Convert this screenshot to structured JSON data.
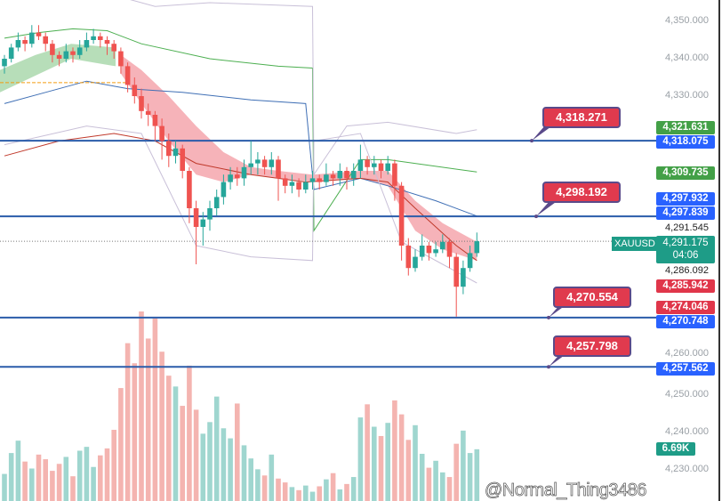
{
  "chart_data": {
    "type": "candlestick",
    "symbol": "XAUUSD",
    "countdown": "04:06",
    "ylim": [
      4225,
      4356
    ],
    "y_ticks": [
      "4,350.000",
      "4,340.000",
      "4,330.000",
      "4,260.000",
      "4,250.000",
      "4,240.000",
      "4,230.000"
    ],
    "y_tick_values": [
      4350,
      4340,
      4330,
      4260,
      4250,
      4240,
      4230
    ],
    "candles": [
      [
        4338,
        4341,
        4336,
        4340
      ],
      [
        4340,
        4344,
        4339,
        4343
      ],
      [
        4343,
        4347,
        4342,
        4345
      ],
      [
        4345,
        4346,
        4342,
        4344
      ],
      [
        4344,
        4349,
        4343,
        4347
      ],
      [
        4347,
        4349,
        4345,
        4346
      ],
      [
        4346,
        4347,
        4342,
        4344
      ],
      [
        4344,
        4345,
        4339,
        4341
      ],
      [
        4341,
        4342,
        4338,
        4340
      ],
      [
        4340,
        4344,
        4339,
        4342
      ],
      [
        4342,
        4343,
        4339,
        4341
      ],
      [
        4341,
        4345,
        4340,
        4343
      ],
      [
        4343,
        4347,
        4342,
        4345
      ],
      [
        4345,
        4348,
        4344,
        4346
      ],
      [
        4346,
        4347,
        4343,
        4345
      ],
      [
        4345,
        4346,
        4341,
        4344
      ],
      [
        4344,
        4345,
        4340,
        4342
      ],
      [
        4342,
        4343,
        4336,
        4338
      ],
      [
        4338,
        4339,
        4331,
        4333
      ],
      [
        4333,
        4335,
        4328,
        4330
      ],
      [
        4330,
        4332,
        4324,
        4326
      ],
      [
        4326,
        4328,
        4322,
        4325
      ],
      [
        4325,
        4326,
        4318,
        4322
      ],
      [
        4322,
        4324,
        4313,
        4318
      ],
      [
        4318,
        4320,
        4311,
        4314
      ],
      [
        4314,
        4318,
        4312,
        4316
      ],
      [
        4316,
        4317,
        4308,
        4310
      ],
      [
        4310,
        4311,
        4296,
        4300
      ],
      [
        4300,
        4302,
        4285,
        4295
      ],
      [
        4295,
        4299,
        4290,
        4297
      ],
      [
        4297,
        4302,
        4294,
        4300
      ],
      [
        4300,
        4305,
        4298,
        4303
      ],
      [
        4303,
        4309,
        4301,
        4307
      ],
      [
        4307,
        4311,
        4305,
        4309
      ],
      [
        4309,
        4311,
        4306,
        4308
      ],
      [
        4308,
        4313,
        4306,
        4311
      ],
      [
        4311,
        4318,
        4309,
        4312
      ],
      [
        4312,
        4315,
        4309,
        4313
      ],
      [
        4313,
        4314,
        4309,
        4311
      ],
      [
        4311,
        4315,
        4309,
        4313
      ],
      [
        4313,
        4314,
        4302,
        4308
      ],
      [
        4308,
        4309,
        4304,
        4306
      ],
      [
        4306,
        4309,
        4304,
        4307
      ],
      [
        4307,
        4308,
        4303,
        4305
      ],
      [
        4305,
        4309,
        4304,
        4307
      ],
      [
        4307,
        4310,
        4305,
        4308
      ],
      [
        4308,
        4309,
        4305,
        4307
      ],
      [
        4307,
        4312,
        4306,
        4309
      ],
      [
        4309,
        4310,
        4306,
        4308
      ],
      [
        4308,
        4312,
        4306,
        4310
      ],
      [
        4310,
        4311,
        4305,
        4308
      ],
      [
        4308,
        4312,
        4306,
        4310
      ],
      [
        4310,
        4317,
        4308,
        4313
      ],
      [
        4313,
        4314,
        4309,
        4311
      ],
      [
        4311,
        4314,
        4309,
        4312
      ],
      [
        4312,
        4313,
        4308,
        4310
      ],
      [
        4310,
        4314,
        4309,
        4312
      ],
      [
        4312,
        4313,
        4302,
        4306
      ],
      [
        4306,
        4307,
        4286,
        4290
      ],
      [
        4290,
        4292,
        4282,
        4284
      ],
      [
        4284,
        4289,
        4283,
        4287
      ],
      [
        4287,
        4293,
        4286,
        4290
      ],
      [
        4290,
        4291,
        4286,
        4288
      ],
      [
        4288,
        4291,
        4287,
        4289
      ],
      [
        4289,
        4293,
        4288,
        4291
      ],
      [
        4291,
        4292,
        4284,
        4287
      ],
      [
        4287,
        4288,
        4271,
        4279
      ],
      [
        4279,
        4286,
        4277,
        4284
      ],
      [
        4284,
        4290,
        4283,
        4288
      ],
      [
        4288,
        4293.5,
        4287,
        4291.175
      ]
    ],
    "volume_k": [
      3.5,
      6.2,
      7.8,
      5.1,
      4.2,
      6.0,
      5.4,
      3.9,
      4.8,
      5.7,
      3.2,
      6.5,
      7.0,
      4.4,
      5.9,
      6.8,
      9.2,
      14.6,
      20.4,
      17.8,
      24.5,
      21.0,
      23.6,
      19.3,
      16.2,
      14.8,
      12.3,
      17.5,
      11.8,
      8.7,
      10.2,
      13.5,
      9.4,
      8.1,
      12.6,
      7.2,
      5.5,
      4.1,
      3.3,
      6.0,
      2.9,
      2.4,
      1.8,
      1.4,
      2.0,
      1.2,
      1.9,
      2.8,
      3.6,
      1.5,
      2.2,
      3.1,
      10.8,
      12.5,
      9.6,
      8.4,
      10.1,
      13.0,
      11.2,
      7.9,
      9.8,
      6.1,
      4.3,
      5.2,
      3.7,
      3.1,
      7.4,
      9.1,
      6.2,
      6.69
    ],
    "volume_label": "6.69K",
    "bands": {
      "upper_green": [
        [
          0,
          4345.5
        ],
        [
          5,
          4347
        ],
        [
          10,
          4348
        ],
        [
          15,
          4347.5
        ],
        [
          20,
          4344
        ],
        [
          30,
          4340
        ],
        [
          40,
          4338
        ],
        [
          45,
          4337.5
        ],
        [
          45.2,
          4294
        ],
        [
          52,
          4313
        ],
        [
          56,
          4313
        ],
        [
          69,
          4309.7
        ]
      ],
      "middle_blue": [
        [
          0,
          4328
        ],
        [
          6,
          4331
        ],
        [
          12,
          4334
        ],
        [
          18,
          4332
        ],
        [
          26,
          4331
        ],
        [
          36,
          4329
        ],
        [
          44,
          4328
        ],
        [
          45.2,
          4305
        ],
        [
          52,
          4308
        ],
        [
          56,
          4306
        ],
        [
          63,
          4302
        ],
        [
          69,
          4297.9
        ]
      ],
      "red": [
        [
          0,
          4314
        ],
        [
          8,
          4318
        ],
        [
          16,
          4320
        ],
        [
          22,
          4318
        ],
        [
          28,
          4312
        ],
        [
          36,
          4309
        ],
        [
          44,
          4307
        ],
        [
          52,
          4308
        ],
        [
          56,
          4307
        ],
        [
          60,
          4300
        ],
        [
          66,
          4290
        ],
        [
          69,
          4286
        ]
      ],
      "lower_gray": [
        [
          0,
          4317
        ],
        [
          12,
          4322
        ],
        [
          20,
          4320
        ],
        [
          28,
          4290
        ],
        [
          36,
          4287
        ],
        [
          45,
          4286
        ],
        [
          45.2,
          4318
        ],
        [
          52,
          4320
        ],
        [
          58,
          4291
        ],
        [
          64,
          4285
        ],
        [
          69,
          4280
        ]
      ],
      "top_gray": [
        [
          18,
          4356
        ],
        [
          22,
          4354
        ],
        [
          30,
          4355
        ],
        [
          45,
          4354
        ],
        [
          45.2,
          4309
        ],
        [
          50,
          4322
        ],
        [
          56,
          4323
        ],
        [
          66,
          4320
        ],
        [
          69,
          4321
        ]
      ]
    },
    "cloud": [
      [
        17,
        4341,
        4336
      ],
      [
        20,
        4337,
        4328
      ],
      [
        24,
        4330,
        4318
      ],
      [
        28,
        4322,
        4309
      ],
      [
        32,
        4315,
        4307
      ],
      [
        36,
        4311,
        4309
      ],
      [
        40,
        4310,
        4308
      ],
      [
        45,
        4309,
        4307
      ],
      [
        52,
        4310,
        4308
      ],
      [
        56,
        4310,
        4306
      ],
      [
        60,
        4302,
        4294
      ],
      [
        64,
        4296,
        4289
      ],
      [
        69,
        4291,
        4286
      ]
    ],
    "orange_level": 4333.6,
    "levels": [
      {
        "value": "4,318.075",
        "price": 4318.075,
        "callout": "4,318.271",
        "callout_price": 4318.271
      },
      {
        "value": "4,297.839",
        "price": 4297.839,
        "callout": "4,298.192",
        "callout_price": 4298.192
      },
      {
        "value": "4,270.748",
        "price": 4270.748,
        "callout": "4,270.554",
        "callout_price": 4270.554
      },
      {
        "value": "4,257.562",
        "price": 4257.562,
        "callout": "4,257.798",
        "callout_price": 4257.798
      }
    ],
    "price_tags": {
      "green_upper": "4,321.631",
      "green_mid": "4,309.735",
      "blue_mid": "4,297.932",
      "black_1": "4,291.545",
      "last": "4,291.175",
      "black_2": "4,286.092",
      "red_1": "4,285.942",
      "red_2": "4,274.046"
    }
  },
  "watermark": "@Normal_Thing3486",
  "colors": {
    "up": "#26a69a",
    "down": "#ef5350",
    "level": "#2a5caa",
    "callout": "#e03a4e",
    "tag_blue": "#2962ff",
    "tag_green": "#43a047",
    "tag_red": "#e0364a"
  }
}
